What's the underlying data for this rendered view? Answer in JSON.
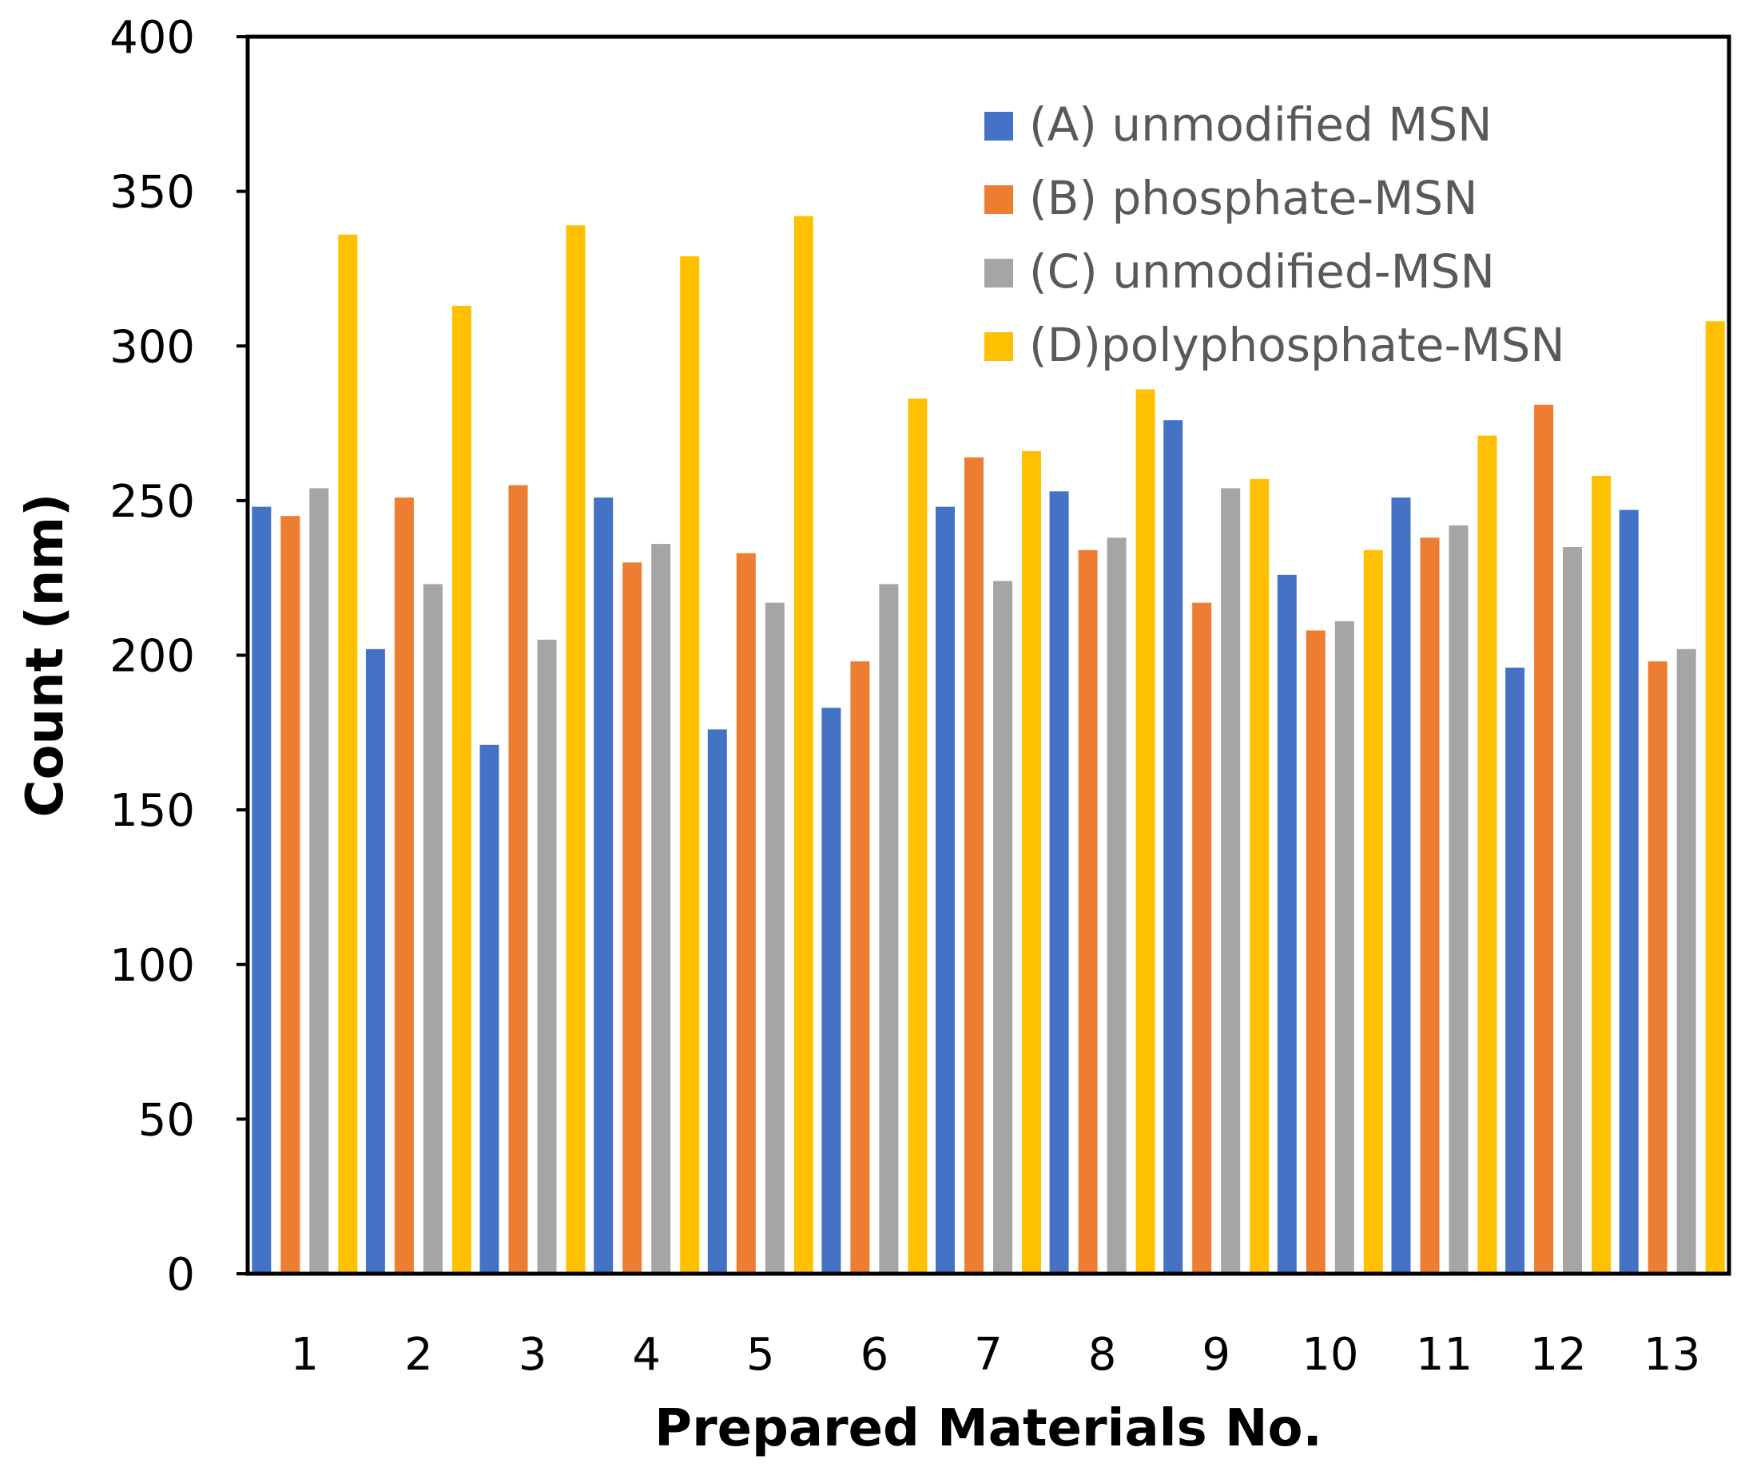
{
  "chart_data": {
    "type": "bar",
    "title": "",
    "xlabel": "Prepared Materials No.",
    "ylabel": "Count (nm)",
    "ylim": [
      0,
      400
    ],
    "yticks": [
      0,
      50,
      100,
      150,
      200,
      250,
      300,
      350,
      400
    ],
    "categories": [
      "1",
      "2",
      "3",
      "4",
      "5",
      "6",
      "7",
      "8",
      "9",
      "10",
      "11",
      "12",
      "13"
    ],
    "legend_position": "top-right",
    "grid": false,
    "series": [
      {
        "name": "(A) unmodified MSN",
        "color": "#4472C4",
        "values": [
          248,
          202,
          171,
          251,
          176,
          183,
          248,
          253,
          276,
          226,
          251,
          196,
          247
        ]
      },
      {
        "name": "(B) phosphate-MSN",
        "color": "#ED7D31",
        "values": [
          245,
          251,
          255,
          230,
          233,
          198,
          264,
          234,
          217,
          208,
          238,
          281,
          198
        ]
      },
      {
        "name": "(C) unmodified-MSN",
        "color": "#A5A5A5",
        "values": [
          254,
          223,
          205,
          236,
          217,
          223,
          224,
          238,
          254,
          211,
          242,
          235,
          202
        ]
      },
      {
        "name": "(D)polyphosphate-MSN",
        "color": "#FFC000",
        "values": [
          336,
          313,
          339,
          329,
          342,
          283,
          266,
          286,
          257,
          234,
          271,
          258,
          308
        ]
      }
    ]
  }
}
